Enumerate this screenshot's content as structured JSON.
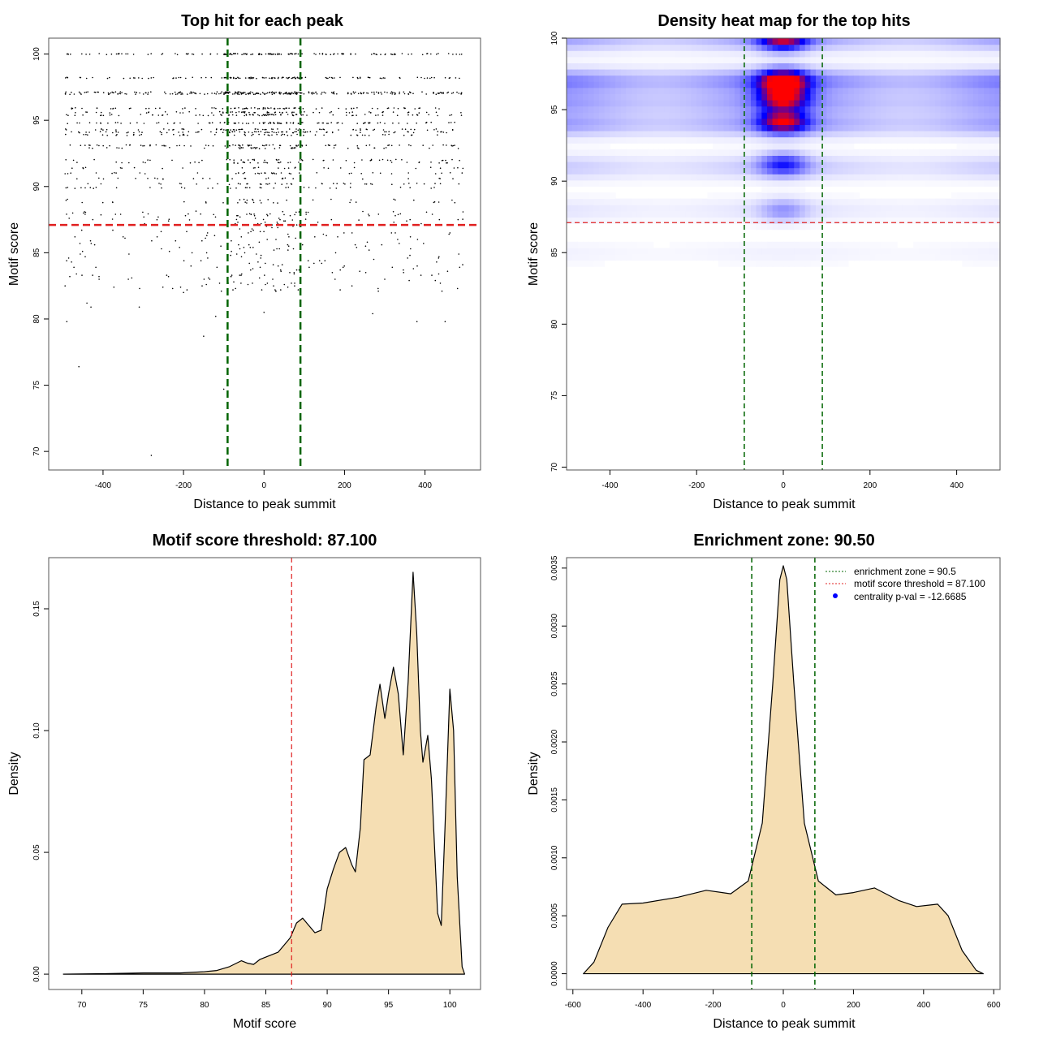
{
  "chart_data": [
    {
      "type": "scatter",
      "title": "Top hit for each peak",
      "xlabel": "Distance to peak summit",
      "ylabel": "Motif score",
      "xlim": [
        -535,
        538
      ],
      "ylim": [
        68.6,
        101.2
      ],
      "xticks": [
        -400,
        -200,
        0,
        200,
        400
      ],
      "yticks": [
        70,
        75,
        80,
        85,
        90,
        95,
        100
      ],
      "point_x_range": [
        -495,
        495
      ],
      "score_levels": [
        [
          100,
          1.0
        ],
        [
          98.2,
          0.9
        ],
        [
          97.1,
          1.0
        ],
        [
          97.0,
          0.9
        ],
        [
          95.9,
          0.6
        ],
        [
          95.6,
          0.5
        ],
        [
          95.4,
          0.6
        ],
        [
          94.8,
          0.7
        ],
        [
          94.3,
          0.5
        ],
        [
          94.1,
          0.6
        ],
        [
          93.9,
          0.4
        ],
        [
          93.1,
          0.6
        ],
        [
          92.9,
          0.3
        ],
        [
          92.0,
          0.3
        ],
        [
          91.8,
          0.25
        ],
        [
          91.4,
          0.2
        ],
        [
          91.0,
          0.3
        ],
        [
          90.6,
          0.2
        ],
        [
          90.2,
          0.3
        ],
        [
          89.9,
          0.25
        ],
        [
          89.0,
          0.12
        ],
        [
          88.8,
          0.15
        ],
        [
          88.1,
          0.1
        ],
        [
          87.9,
          0.12
        ],
        [
          87.5,
          0.08
        ]
      ],
      "outliers": [
        [
          -460,
          76.4
        ],
        [
          -280,
          69.7
        ],
        [
          -100,
          74.7
        ],
        [
          -150,
          78.7
        ],
        [
          -490,
          79.8
        ],
        [
          -310,
          80.9
        ],
        [
          270,
          80.4
        ],
        [
          380,
          79.8
        ],
        [
          450,
          79.8
        ],
        [
          -120,
          80.2
        ],
        [
          -440,
          81.2
        ],
        [
          0,
          80.5
        ],
        [
          -80,
          83.3
        ],
        [
          -430,
          80.9
        ],
        [
          -200,
          82.0
        ],
        [
          300,
          83.0
        ]
      ],
      "vlines": [
        -90.5,
        90.5
      ],
      "hline": 87.1,
      "colors": {
        "points": "#000000",
        "vlines": "#006400",
        "hline": "#e02020"
      }
    },
    {
      "type": "heatmap",
      "title": "Density heat map for the top hits",
      "xlabel": "Distance to peak summit",
      "ylabel": "Motif score",
      "xlim": [
        -500,
        500
      ],
      "ylim": [
        69.8,
        100
      ],
      "xticks": [
        -400,
        -200,
        0,
        200,
        400
      ],
      "yticks": [
        70,
        75,
        80,
        85,
        90,
        95,
        100
      ],
      "hotspots": [
        [
          0,
          100,
          0.75
        ],
        [
          0,
          97,
          1.0
        ],
        [
          0,
          95.8,
          0.8
        ],
        [
          0,
          94.2,
          0.8
        ],
        [
          0,
          91.2,
          0.4
        ],
        [
          0,
          88,
          0.18
        ]
      ],
      "bands": [
        [
          100,
          0.22
        ],
        [
          97,
          0.3
        ],
        [
          95.5,
          0.22
        ],
        [
          94,
          0.22
        ],
        [
          91,
          0.12
        ],
        [
          88,
          0.06
        ],
        [
          85,
          0.03
        ]
      ],
      "vlines": [
        -90,
        90
      ],
      "hline": 87.1,
      "colors": {
        "low": "#ffffff",
        "mid": "#0000ff",
        "high": "#ff0000",
        "vlines": "#006400",
        "hline": "#e02020"
      }
    },
    {
      "type": "area",
      "title": "Motif score threshold: 87.100",
      "xlabel": "Motif score",
      "ylabel": "Density",
      "xlim": [
        67.3,
        102.5
      ],
      "ylim": [
        -0.0063,
        0.171
      ],
      "xticks": [
        70,
        75,
        80,
        85,
        90,
        95,
        100
      ],
      "yticks": [
        0.0,
        0.05,
        0.1,
        0.15
      ],
      "ytick_labels": [
        "0.00",
        "0.05",
        "0.10",
        "0.15"
      ],
      "x": [
        68.5,
        72,
        75,
        78,
        80,
        81,
        82,
        83,
        83.5,
        84,
        84.5,
        85,
        86,
        86.5,
        87,
        87.5,
        88,
        88.5,
        89,
        89.5,
        90,
        90.5,
        91,
        91.5,
        92,
        92.3,
        92.7,
        93,
        93.5,
        94,
        94.3,
        94.7,
        95,
        95.4,
        95.8,
        96.2,
        96.6,
        97,
        97.3,
        97.6,
        97.8,
        98.2,
        98.5,
        99,
        99.3,
        99.6,
        100,
        100.3,
        100.6,
        101,
        101.2
      ],
      "y": [
        0,
        0.0002,
        0.0005,
        0.0005,
        0.001,
        0.0015,
        0.003,
        0.0055,
        0.0045,
        0.004,
        0.006,
        0.007,
        0.009,
        0.012,
        0.015,
        0.021,
        0.023,
        0.02,
        0.017,
        0.018,
        0.035,
        0.043,
        0.05,
        0.052,
        0.045,
        0.042,
        0.06,
        0.088,
        0.09,
        0.11,
        0.119,
        0.105,
        0.115,
        0.126,
        0.115,
        0.09,
        0.12,
        0.165,
        0.14,
        0.1,
        0.087,
        0.098,
        0.08,
        0.025,
        0.02,
        0.06,
        0.117,
        0.1,
        0.04,
        0.003,
        0
      ],
      "vline": 87.1,
      "colors": {
        "fill": "#f5deb3",
        "line": "#000000",
        "vline": "#e02020"
      }
    },
    {
      "type": "area",
      "title": "Enrichment zone: 90.50",
      "xlabel": "Distance to peak summit",
      "ylabel": "Density",
      "xlim": [
        -618,
        618
      ],
      "ylim": [
        -0.000136,
        0.00359
      ],
      "xticks": [
        -600,
        -400,
        -200,
        0,
        200,
        400,
        600
      ],
      "yticks": [
        0,
        0.0005,
        0.001,
        0.0015,
        0.002,
        0.0025,
        0.003,
        0.0035
      ],
      "ytick_labels": [
        "0.0000",
        "0.0005",
        "0.0010",
        "0.0015",
        "0.0020",
        "0.0025",
        "0.0030",
        "0.0035"
      ],
      "x": [
        -570,
        -540,
        -500,
        -460,
        -400,
        -300,
        -220,
        -150,
        -100,
        -60,
        -30,
        -10,
        0,
        10,
        30,
        60,
        100,
        150,
        200,
        260,
        330,
        380,
        440,
        470,
        510,
        550,
        570
      ],
      "y": [
        0,
        0.0001,
        0.0004,
        0.0006,
        0.00061,
        0.00066,
        0.00072,
        0.00069,
        0.0008,
        0.0013,
        0.0025,
        0.0034,
        0.00352,
        0.0034,
        0.0025,
        0.0013,
        0.0008,
        0.00068,
        0.0007,
        0.00074,
        0.00063,
        0.00058,
        0.0006,
        0.0005,
        0.0002,
        3e-05,
        0
      ],
      "vlines": [
        -90,
        90
      ],
      "legend": {
        "position": "top-right",
        "entries": [
          "enrichment zone = 90.5",
          "motif score threshold = 87.100",
          "centrality p-val = -12.6685"
        ]
      },
      "colors": {
        "fill": "#f5deb3",
        "line": "#000000",
        "vlines": "#006400",
        "threshold": "#e02020",
        "pval": "#0000ff"
      }
    }
  ]
}
